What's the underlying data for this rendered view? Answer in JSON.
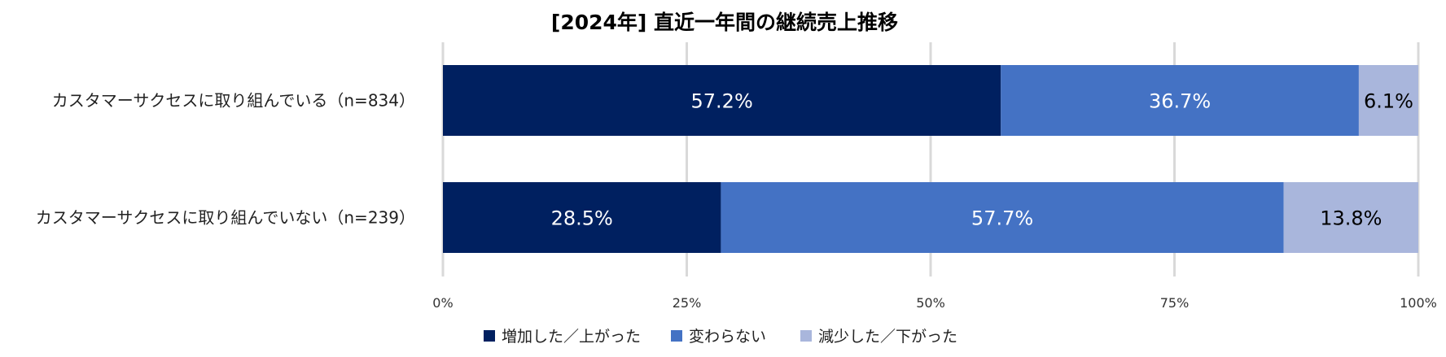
{
  "chart_data": {
    "type": "bar",
    "orientation": "horizontal",
    "stacked": "percent",
    "title": "[2024年] 直近一年間の継続売上推移",
    "categories": [
      "カスタマーサクセスに取り組んでいる（n=834）",
      "カスタマーサクセスに取り組んでいない（n=239）"
    ],
    "series": [
      {
        "name": "増加した／上がった",
        "color": "#002060",
        "label_color": "#ffffff",
        "values": [
          57.2,
          28.5
        ],
        "labels": [
          "57.2%",
          "28.5%"
        ]
      },
      {
        "name": "変わらない",
        "color": "#4472c4",
        "label_color": "#ffffff",
        "values": [
          36.7,
          57.7
        ],
        "labels": [
          "36.7%",
          "57.7%"
        ]
      },
      {
        "name": "減少した／下がった",
        "color": "#a9b6dc",
        "label_color": "#000000",
        "values": [
          6.1,
          13.8
        ],
        "labels": [
          "6.1%",
          "13.8%"
        ]
      }
    ],
    "xlim": [
      0,
      100
    ],
    "ticks": [
      0,
      25,
      50,
      75,
      100
    ],
    "tick_labels": [
      "0%",
      "25%",
      "50%",
      "75%",
      "100%"
    ],
    "grid": true,
    "legend_position": "bottom"
  }
}
